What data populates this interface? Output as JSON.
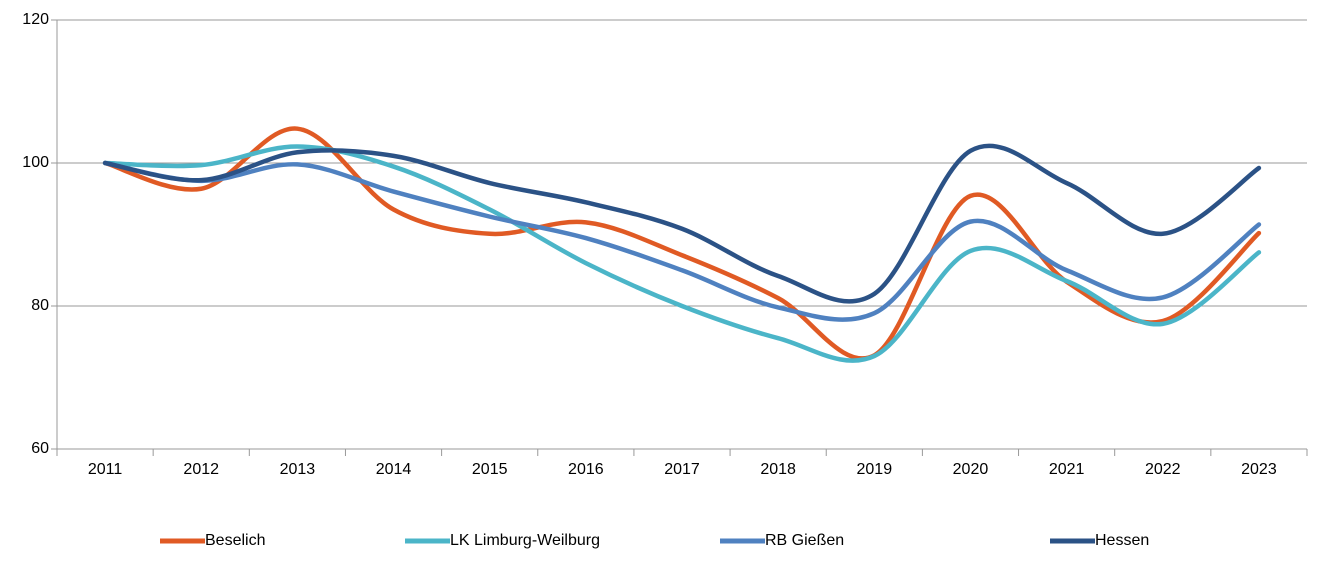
{
  "chart_data": {
    "type": "line",
    "categories": [
      "2011",
      "2012",
      "2013",
      "2014",
      "2015",
      "2016",
      "2017",
      "2018",
      "2019",
      "2020",
      "2021",
      "2022",
      "2023"
    ],
    "series": [
      {
        "name": "Beselich",
        "color": "#e05a24",
        "values": [
          100,
          96.4,
          104.8,
          93.5,
          90.1,
          91.7,
          87.1,
          81.1,
          73.1,
          95.4,
          83.4,
          77.9,
          90.2
        ]
      },
      {
        "name": "LK Limburg-Weilburg",
        "color": "#4bb5c8",
        "values": [
          100,
          99.7,
          102.3,
          99.5,
          93.5,
          86,
          80,
          75.5,
          73,
          87.7,
          83.5,
          77.5,
          87.5
        ]
      },
      {
        "name": "RB Gießen",
        "color": "#4f81c0",
        "values": [
          100,
          97.5,
          99.8,
          96,
          92.5,
          89.5,
          85,
          79.8,
          79,
          91.8,
          85,
          81.2,
          91.4
        ]
      },
      {
        "name": "Hessen",
        "color": "#2b5286",
        "values": [
          100,
          97.6,
          101.5,
          101,
          97.2,
          94.5,
          90.8,
          84.2,
          81.7,
          101.7,
          97.2,
          90.1,
          99.3
        ]
      }
    ],
    "ylim": [
      60,
      120
    ],
    "yticks": [
      60,
      80,
      100,
      120
    ],
    "grid": true,
    "smooth": true,
    "legend": "bottom"
  }
}
